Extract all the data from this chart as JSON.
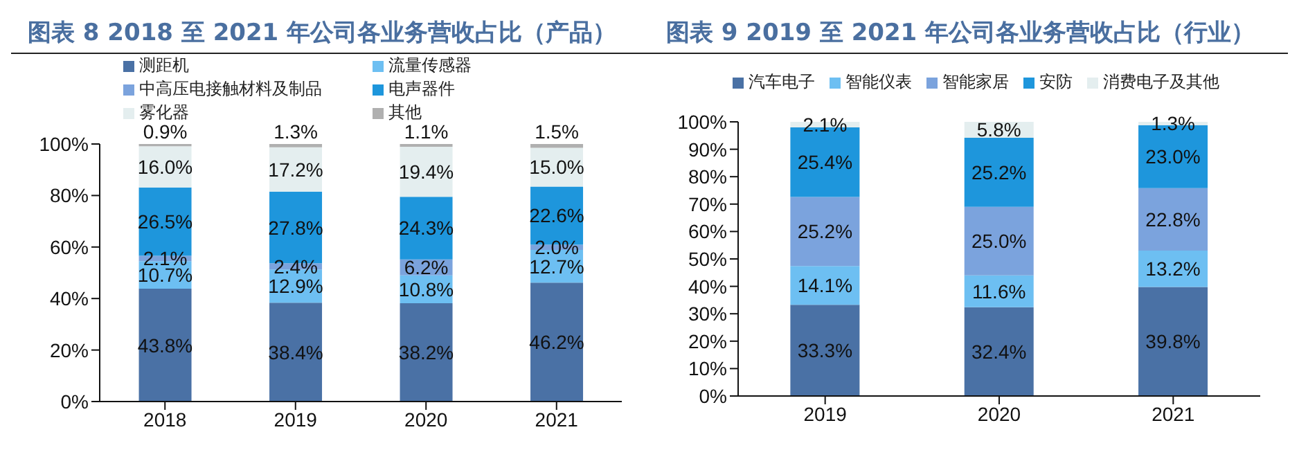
{
  "chart_data": [
    {
      "type": "bar",
      "title": "图表 8 2018 至 2021 年公司各业务营收占比（产品）",
      "stacked": true,
      "legend": "top",
      "categories": [
        "2018",
        "2019",
        "2020",
        "2021"
      ],
      "ylim": [
        0,
        100
      ],
      "yticks": [
        {
          "value": 0,
          "label": "0%"
        },
        {
          "value": 20,
          "label": "20%"
        },
        {
          "value": 40,
          "label": "40%"
        },
        {
          "value": 60,
          "label": "60%"
        },
        {
          "value": 80,
          "label": "80%"
        },
        {
          "value": 100,
          "label": "100%"
        }
      ],
      "series": [
        {
          "name": "测距机",
          "color": "#4a71a5",
          "values": [
            43.8,
            38.4,
            38.2,
            46.2
          ],
          "value_labels": [
            "43.8%",
            "38.4%",
            "38.2%",
            "46.2%"
          ]
        },
        {
          "name": "流量传感器",
          "color": "#6dbff2",
          "values": [
            10.7,
            12.9,
            10.8,
            12.7
          ],
          "value_labels": [
            "10.7%",
            "12.9%",
            "10.8%",
            "12.7%"
          ]
        },
        {
          "name": "中高压电接触材料及制品",
          "color": "#7ba3dd",
          "values": [
            2.1,
            2.4,
            6.2,
            2.0
          ],
          "value_labels": [
            "2.1%",
            "2.4%",
            "6.2%",
            "2.0%"
          ]
        },
        {
          "name": "电声器件",
          "color": "#1e96dc",
          "values": [
            26.5,
            27.8,
            24.3,
            22.6
          ],
          "value_labels": [
            "26.5%",
            "27.8%",
            "24.3%",
            "22.6%"
          ]
        },
        {
          "name": "雾化器",
          "color": "#e4eeef",
          "values": [
            16.0,
            17.2,
            19.4,
            15.0
          ],
          "value_labels": [
            "16.0%",
            "17.2%",
            "19.4%",
            "15.0%"
          ]
        },
        {
          "name": "其他",
          "color": "#b0b0b0",
          "values": [
            0.9,
            1.3,
            1.1,
            1.5
          ],
          "value_labels": [
            "0.9%",
            "1.3%",
            "1.1%",
            "1.5%"
          ]
        }
      ]
    },
    {
      "type": "bar",
      "title": "图表 9 2019 至 2021 年公司各业务营收占比（行业）",
      "stacked": true,
      "legend": "top",
      "categories": [
        "2019",
        "2020",
        "2021"
      ],
      "ylim": [
        0,
        100
      ],
      "yticks": [
        {
          "value": 0,
          "label": "0%"
        },
        {
          "value": 10,
          "label": "10%"
        },
        {
          "value": 20,
          "label": "20%"
        },
        {
          "value": 30,
          "label": "30%"
        },
        {
          "value": 40,
          "label": "40%"
        },
        {
          "value": 50,
          "label": "50%"
        },
        {
          "value": 60,
          "label": "60%"
        },
        {
          "value": 70,
          "label": "70%"
        },
        {
          "value": 80,
          "label": "80%"
        },
        {
          "value": 90,
          "label": "90%"
        },
        {
          "value": 100,
          "label": "100%"
        }
      ],
      "series": [
        {
          "name": "汽车电子",
          "color": "#4a71a5",
          "values": [
            33.3,
            32.4,
            39.8
          ],
          "value_labels": [
            "33.3%",
            "32.4%",
            "39.8%"
          ]
        },
        {
          "name": "智能仪表",
          "color": "#6dbff2",
          "values": [
            14.1,
            11.6,
            13.2
          ],
          "value_labels": [
            "14.1%",
            "11.6%",
            "13.2%"
          ]
        },
        {
          "name": "智能家居",
          "color": "#7ba3dd",
          "values": [
            25.2,
            25.0,
            22.8
          ],
          "value_labels": [
            "25.2%",
            "25.0%",
            "22.8%"
          ]
        },
        {
          "name": "安防",
          "color": "#1e96dc",
          "values": [
            25.4,
            25.2,
            23.0
          ],
          "value_labels": [
            "25.4%",
            "25.2%",
            "23.0%"
          ]
        },
        {
          "name": "消费电子及其他",
          "color": "#e4eeef",
          "values": [
            2.1,
            5.8,
            1.3
          ],
          "value_labels": [
            "2.1%",
            "5.8%",
            "1.3%"
          ]
        }
      ]
    }
  ]
}
